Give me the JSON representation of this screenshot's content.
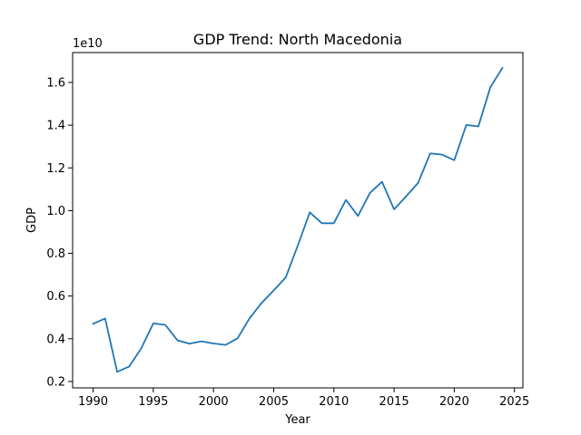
{
  "chart_data": {
    "type": "line",
    "title": "GDP Trend: North Macedonia",
    "xlabel": "Year",
    "ylabel": "GDP",
    "y_offset_label": "1e10",
    "xlim": [
      1988.3,
      2025.7
    ],
    "ylim": [
      0.17,
      1.74
    ],
    "x_ticks": [
      1990,
      1995,
      2000,
      2005,
      2010,
      2015,
      2020,
      2025
    ],
    "x_tick_labels": [
      "1990",
      "1995",
      "2000",
      "2005",
      "2010",
      "2015",
      "2020",
      "2025"
    ],
    "y_ticks": [
      0.2,
      0.4,
      0.6,
      0.8,
      1.0,
      1.2,
      1.4,
      1.6
    ],
    "y_tick_labels": [
      "0.2",
      "0.4",
      "0.6",
      "0.8",
      "1.0",
      "1.2",
      "1.4",
      "1.6"
    ],
    "grid": false,
    "series": [
      {
        "color": "#1f77b4",
        "x": [
          1990,
          1991,
          1992,
          1993,
          1994,
          1995,
          1996,
          1997,
          1998,
          1999,
          2000,
          2001,
          2002,
          2003,
          2004,
          2005,
          2006,
          2007,
          2008,
          2009,
          2010,
          2011,
          2012,
          2013,
          2014,
          2015,
          2016,
          2017,
          2018,
          2019,
          2020,
          2021,
          2022,
          2023,
          2024
        ],
        "y": [
          0.47,
          0.495,
          0.245,
          0.27,
          0.355,
          0.472,
          0.465,
          0.393,
          0.377,
          0.388,
          0.378,
          0.371,
          0.402,
          0.496,
          0.568,
          0.626,
          0.687,
          0.836,
          0.992,
          0.941,
          0.941,
          1.05,
          0.975,
          1.083,
          1.135,
          1.006,
          1.067,
          1.13,
          1.268,
          1.262,
          1.236,
          1.401,
          1.394,
          1.578,
          1.668
        ]
      }
    ]
  }
}
